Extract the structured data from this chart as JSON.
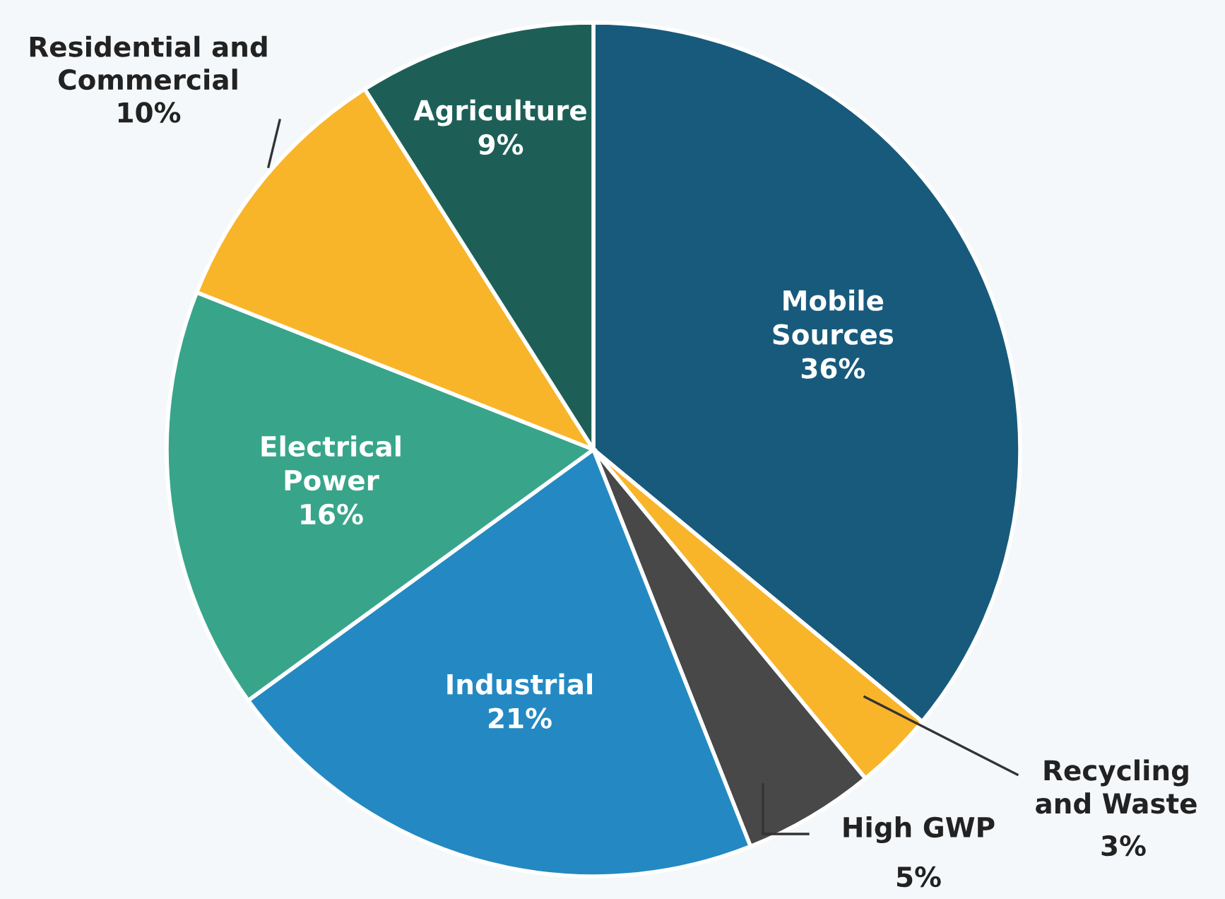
{
  "chart_data": {
    "type": "pie",
    "categories": [
      "Mobile\nSources",
      "Recycling\nand Waste",
      "High GWP",
      "Industrial",
      "Electrical\nPower",
      "Residential and\nCommercial",
      "Agriculture"
    ],
    "values": [
      36,
      3,
      5,
      21,
      16,
      10,
      9
    ],
    "value_labels": [
      "36%",
      "3%",
      "5%",
      "21%",
      "16%",
      "10%",
      "9%"
    ],
    "colors": [
      "#175a7c",
      "#f8b52a",
      "#484848",
      "#2489c2",
      "#38a58a",
      "#f8b52a",
      "#1d5f57"
    ]
  }
}
